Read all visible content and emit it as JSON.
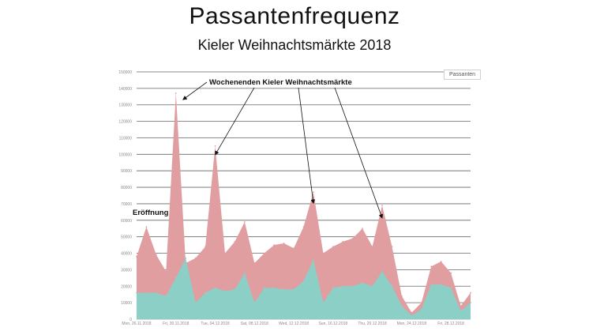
{
  "chart_data": {
    "type": "area",
    "title": "Passantenfrequenz",
    "subtitle": "Kieler Weihnachtsmärkte 2018",
    "legend": {
      "label": "Passanten",
      "position": "top-right"
    },
    "ylim": [
      0,
      150000
    ],
    "yticks": [
      0,
      10000,
      20000,
      30000,
      40000,
      50000,
      60000,
      70000,
      80000,
      90000,
      100000,
      110000,
      120000,
      130000,
      140000,
      150000
    ],
    "ytick_labels": [
      "0",
      "10000",
      "20000",
      "30000",
      "40000",
      "50000",
      "60000",
      "70000",
      "80000",
      "90000",
      "100000",
      "110000",
      "120000",
      "130000",
      "140000",
      "150000"
    ],
    "x_tick_labels": [
      {
        "index": 0,
        "label": "Mon, 26.11.2018"
      },
      {
        "index": 4,
        "label": "Fri, 30.11.2018"
      },
      {
        "index": 8,
        "label": "Tue, 04.12.2018"
      },
      {
        "index": 12,
        "label": "Sat, 08.12.2018"
      },
      {
        "index": 16,
        "label": "Wed, 12.12.2018"
      },
      {
        "index": 20,
        "label": "Sun, 16.12.2018"
      },
      {
        "index": 24,
        "label": "Thu, 20.12.2018"
      },
      {
        "index": 28,
        "label": "Mon, 24.12.2018"
      },
      {
        "index": 32,
        "label": "Fri, 28.12.2018"
      }
    ],
    "grid": true,
    "series": [
      {
        "key": "total",
        "color": "#e09ea1",
        "values": [
          38000,
          56000,
          39000,
          29000,
          137000,
          34000,
          37000,
          44000,
          105000,
          40000,
          47000,
          59000,
          34000,
          40000,
          45000,
          46000,
          43000,
          56000,
          77000,
          40000,
          44000,
          47000,
          49000,
          55000,
          44000,
          69000,
          44000,
          14000,
          4000,
          10000,
          32000,
          35000,
          28000,
          8000,
          16000
        ]
      },
      {
        "key": "inner",
        "color": "#8ccfc7",
        "values": [
          16000,
          16000,
          16000,
          14000,
          25000,
          37000,
          10000,
          16000,
          19000,
          17000,
          18000,
          28000,
          10000,
          19000,
          19000,
          18000,
          18000,
          23000,
          36000,
          10000,
          19000,
          20000,
          20000,
          22000,
          20000,
          29000,
          20000,
          8000,
          2000,
          6000,
          21000,
          21000,
          19000,
          5000,
          10000
        ]
      }
    ],
    "annotations": [
      {
        "text": "Wochenenden Kieler Weihnachtsmärkte",
        "arrows_to_index": [
          4,
          8,
          18,
          25
        ]
      },
      {
        "text": "Eröffnung"
      }
    ]
  }
}
